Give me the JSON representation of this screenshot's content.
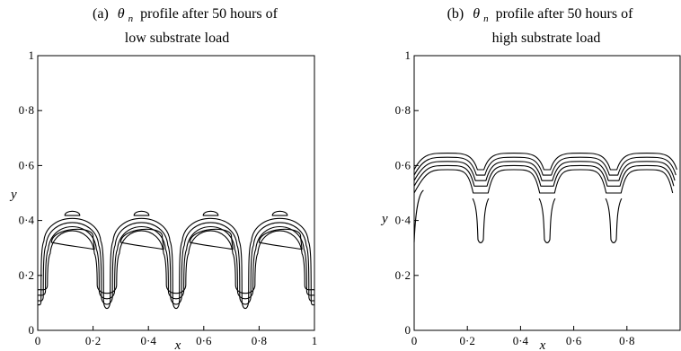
{
  "chart_data": [
    {
      "type": "contour",
      "title_prefix": "(a)",
      "title_symbol": "θ",
      "title_subscript": "n",
      "title_line1_rest": "profile after 50 hours of",
      "title_line2": "low substrate load",
      "xlabel": "x",
      "ylabel": "y",
      "xlim": [
        0,
        1
      ],
      "ylim": [
        0,
        1
      ],
      "x_ticks": [
        0,
        0.2,
        0.4,
        0.6,
        0.8,
        1
      ],
      "x_tick_labels": [
        "0",
        "0·2",
        "0·4",
        "0·6",
        "0·8",
        "1"
      ],
      "y_ticks": [
        0,
        0.2,
        0.4,
        0.6,
        0.8,
        1
      ],
      "y_tick_labels": [
        "0",
        "0·2",
        "0·4",
        "0·6",
        "0·8",
        "1"
      ],
      "pattern": "bumps",
      "period": 0.25,
      "centers": [
        0.125,
        0.375,
        0.625,
        0.875
      ],
      "contours": [
        {
          "level": 1,
          "top_y": 0.435,
          "base_y": 0.11,
          "half_width": 0.113
        },
        {
          "level": 2,
          "top_y": 0.42,
          "base_y": 0.125,
          "half_width": 0.105
        },
        {
          "level": 3,
          "top_y": 0.405,
          "base_y": 0.145,
          "half_width": 0.097
        },
        {
          "level": 4,
          "top_y": 0.39,
          "base_y": 0.165,
          "half_width": 0.09
        }
      ],
      "inner_contour": {
        "top_y": 0.375,
        "bottom_y": 0.3,
        "x_left_offset": -0.075,
        "x_right_offset": 0.06
      },
      "small_contour": {
        "y": 0.425,
        "half_width": 0.027,
        "thickness": 0.014
      }
    },
    {
      "type": "contour",
      "title_prefix": "(b)",
      "title_symbol": "θ",
      "title_subscript": "n",
      "title_line1_rest": "profile after 50 hours of",
      "title_line2": "high substrate load",
      "xlabel": "x",
      "ylabel": "y",
      "xlim": [
        0,
        1
      ],
      "ylim": [
        0,
        1
      ],
      "x_ticks": [
        0,
        0.2,
        0.4,
        0.6,
        0.8
      ],
      "x_tick_labels": [
        "0",
        "0·2",
        "0·4",
        "0·6",
        "0·8"
      ],
      "y_ticks": [
        0,
        0.2,
        0.4,
        0.6,
        0.8,
        1
      ],
      "y_tick_labels": [
        "0",
        "0·2",
        "0·4",
        "0·6",
        "0·8",
        "1"
      ],
      "pattern": "arches",
      "dips": [
        0,
        0.25,
        0.5,
        0.75,
        1
      ],
      "contours": [
        {
          "level": 1,
          "peak_y": 0.645,
          "valley_y": 0.585
        },
        {
          "level": 2,
          "peak_y": 0.63,
          "valley_y": 0.565
        },
        {
          "level": 3,
          "peak_y": 0.615,
          "valley_y": 0.545
        },
        {
          "level": 4,
          "peak_y": 0.6,
          "valley_y": 0.525
        },
        {
          "level": 5,
          "peak_y": 0.585,
          "valley_y": 0.5
        }
      ],
      "finger": {
        "bottom_y": 0.32,
        "half_width": 0.012
      }
    }
  ]
}
